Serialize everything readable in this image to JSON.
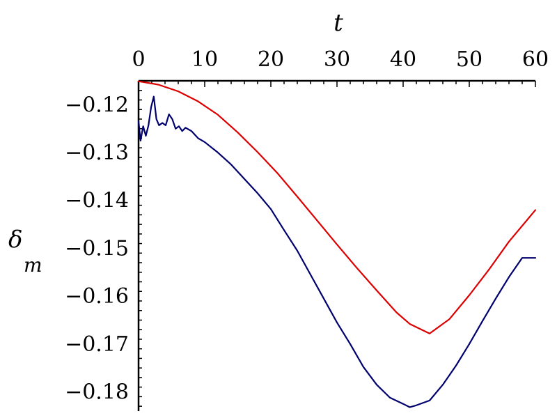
{
  "chart_data": {
    "type": "line",
    "xlabel": "t",
    "ylabel": "δ",
    "ylabel_subscript": "m",
    "xlim": [
      0,
      60
    ],
    "ylim": [
      -0.184,
      -0.115
    ],
    "x_axis_position": "top",
    "x_ticks": [
      0,
      10,
      20,
      30,
      40,
      50,
      60
    ],
    "x_tick_labels": [
      "0",
      "10",
      "20",
      "30",
      "40",
      "50",
      "60"
    ],
    "y_ticks": [
      -0.12,
      -0.13,
      -0.14,
      -0.15,
      -0.16,
      -0.17,
      -0.18
    ],
    "y_tick_labels": [
      "−0.12",
      "−0.13",
      "−0.14",
      "−0.15",
      "−0.16",
      "−0.17",
      "−0.18"
    ],
    "grid": false,
    "legend": "none",
    "series": [
      {
        "color": "#dd0000",
        "x": [
          0,
          3,
          6,
          9,
          12,
          15,
          18,
          21,
          24,
          27,
          30,
          33,
          36,
          39,
          41,
          44,
          47,
          50,
          53,
          56,
          60
        ],
        "y": [
          -0.1151,
          -0.1158,
          -0.1172,
          -0.1193,
          -0.1221,
          -0.1258,
          -0.1299,
          -0.1343,
          -0.1392,
          -0.1442,
          -0.1492,
          -0.1541,
          -0.1588,
          -0.1634,
          -0.1658,
          -0.1678,
          -0.1648,
          -0.1598,
          -0.1544,
          -0.1486,
          -0.142
        ]
      },
      {
        "color": "#00006e",
        "x": [
          0,
          0.3,
          0.7,
          1.1,
          1.5,
          1.9,
          2.3,
          2.7,
          3.1,
          3.6,
          4.1,
          4.6,
          5.1,
          5.6,
          6.1,
          6.6,
          7.1,
          8,
          9,
          10,
          12,
          14,
          16,
          18,
          20,
          22,
          24,
          26,
          28,
          30,
          32,
          34,
          36,
          38,
          40,
          41,
          42,
          44,
          46,
          48,
          50,
          52,
          54,
          56,
          58,
          60
        ],
        "y": [
          -0.1235,
          -0.1275,
          -0.1245,
          -0.1265,
          -0.1243,
          -0.1205,
          -0.1183,
          -0.123,
          -0.1243,
          -0.1238,
          -0.1243,
          -0.122,
          -0.123,
          -0.125,
          -0.1245,
          -0.1255,
          -0.1248,
          -0.1255,
          -0.127,
          -0.1278,
          -0.13,
          -0.1325,
          -0.1355,
          -0.1385,
          -0.1418,
          -0.1462,
          -0.1505,
          -0.1555,
          -0.1605,
          -0.1655,
          -0.17,
          -0.1748,
          -0.1785,
          -0.1812,
          -0.1825,
          -0.1832,
          -0.1828,
          -0.1818,
          -0.1785,
          -0.1745,
          -0.17,
          -0.1652,
          -0.1605,
          -0.156,
          -0.152,
          -0.152
        ]
      }
    ]
  }
}
